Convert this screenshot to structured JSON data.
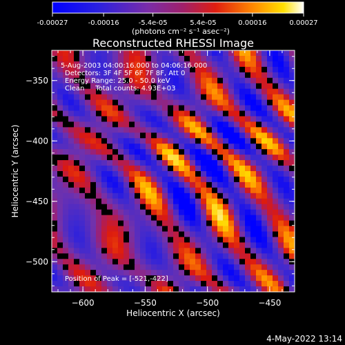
{
  "colorbar": {
    "tick_labels": [
      "-0.00027",
      "-0.00016",
      "-5.4e-05",
      "5.4e-05",
      "0.00016",
      "0.00027"
    ],
    "tick_values": [
      -0.00027,
      -0.00016,
      -5.4e-05,
      5.4e-05,
      0.00016,
      0.00027
    ],
    "range": [
      -0.00027,
      0.00027
    ],
    "units_text": "(photons cm⁻² s⁻¹ asec⁻²)"
  },
  "plot": {
    "title": "Reconstructed RHESSI Image",
    "info_lines": [
      "5-Aug-2003 04:00:16.000 to 04:06:16.000",
      "Detectors: 3F 4F 5F 6F 7F 8F, Att 0",
      "Energy Range: 25.0 - 50.0 keV",
      "Clean     Total counts: 4.93E+03"
    ],
    "peak_text": "Position of Peak = [-521,-422]",
    "footer_date": "4-May-2022 13:14"
  },
  "colors": {
    "background": "#000000",
    "text": "#ffffff",
    "colormap": [
      "#0000ff",
      "#6b2fb0",
      "#a0207a",
      "#d42020",
      "#ff8000",
      "#ffd000",
      "#ffffff"
    ]
  },
  "chart_data": {
    "type": "heatmap",
    "title": "Reconstructed RHESSI Image",
    "xlabel": "Heliocentric X (arcsec)",
    "ylabel": "Heliocentric Y (arcsec)",
    "xlim": [
      -625,
      -430
    ],
    "ylim": [
      -525,
      -325
    ],
    "xticks": [
      -600,
      -550,
      -500,
      -450
    ],
    "xtick_labels": [
      "−600",
      "−550",
      "−500",
      "−450"
    ],
    "yticks": [
      -350,
      -400,
      -450,
      -500
    ],
    "ytick_labels": [
      "−350",
      "−400",
      "−450",
      "−500"
    ],
    "peak_position": [
      -521,
      -422
    ],
    "value_range": [
      -0.00027,
      0.00027
    ],
    "pattern": "diagonal streaks (lower-left to upper-right in image coordinates)"
  }
}
